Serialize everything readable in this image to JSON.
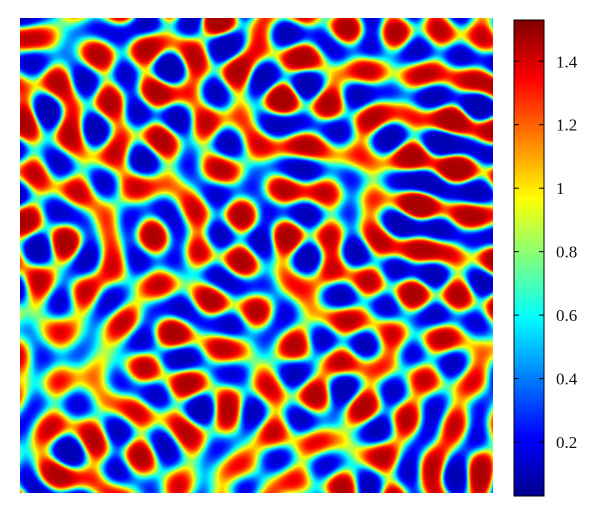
{
  "chart_data": {
    "type": "heatmap",
    "title": "",
    "xlabel": "",
    "ylabel": "",
    "pattern": "labyrinthine stripes and spots (Turing pattern)",
    "value_range": [
      0.03,
      1.53
    ],
    "colormap": "jet",
    "colormap_stops": [
      "#00008f",
      "#0000ff",
      "#00ffff",
      "#ffff00",
      "#ff0000",
      "#800000"
    ],
    "colorbar": {
      "placement": "right",
      "range": [
        0.03,
        1.53
      ],
      "ticks": [
        0.2,
        0.4,
        0.6,
        0.8,
        1.0,
        1.2,
        1.4
      ],
      "tick_labels": [
        "0.2",
        "0.4",
        "0.6",
        "0.8",
        "1",
        "1.2",
        "1.4"
      ]
    },
    "grid": false,
    "legend": "none"
  }
}
